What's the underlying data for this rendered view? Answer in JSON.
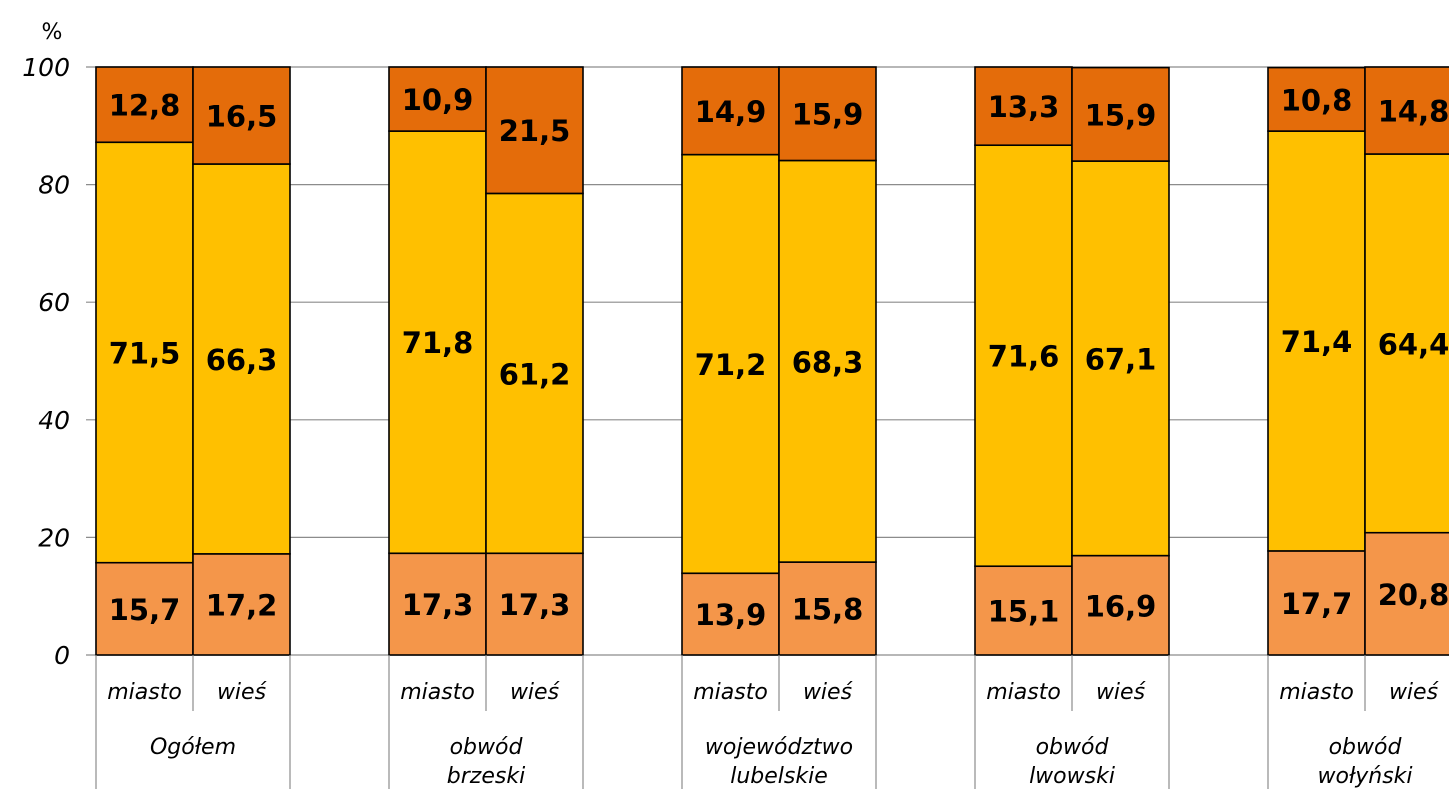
{
  "chart_data": {
    "type": "bar",
    "stacked": true,
    "y_unit": "%",
    "ylim": [
      0,
      100
    ],
    "yticks": [
      "0",
      "20",
      "40",
      "60",
      "80",
      "100"
    ],
    "grid": true,
    "colors": [
      "#F4964A",
      "#FFC000",
      "#E46C0A"
    ],
    "groups": [
      {
        "label_lines": [
          "Ogółem"
        ],
        "bars": [
          {
            "sub": "miasto",
            "values": [
              15.7,
              71.5,
              12.8
            ],
            "labels": [
              "15,7",
              "71,5",
              "12,8"
            ]
          },
          {
            "sub": "wieś",
            "values": [
              17.2,
              66.3,
              16.5
            ],
            "labels": [
              "17,2",
              "66,3",
              "16,5"
            ]
          }
        ]
      },
      {
        "label_lines": [
          "obwód",
          "brzeski"
        ],
        "bars": [
          {
            "sub": "miasto",
            "values": [
              17.3,
              71.8,
              10.9
            ],
            "labels": [
              "17,3",
              "71,8",
              "10,9"
            ]
          },
          {
            "sub": "wieś",
            "values": [
              17.3,
              61.2,
              21.5
            ],
            "labels": [
              "17,3",
              "61,2",
              "21,5"
            ]
          }
        ]
      },
      {
        "label_lines": [
          "województwo",
          "lubelskie"
        ],
        "bars": [
          {
            "sub": "miasto",
            "values": [
              13.9,
              71.2,
              14.9
            ],
            "labels": [
              "13,9",
              "71,2",
              "14,9"
            ]
          },
          {
            "sub": "wieś",
            "values": [
              15.8,
              68.3,
              15.9
            ],
            "labels": [
              "15,8",
              "68,3",
              "15,9"
            ]
          }
        ]
      },
      {
        "label_lines": [
          "obwód",
          "lwowski"
        ],
        "bars": [
          {
            "sub": "miasto",
            "values": [
              15.1,
              71.6,
              13.3
            ],
            "labels": [
              "15,1",
              "71,6",
              "13,3"
            ]
          },
          {
            "sub": "wieś",
            "values": [
              16.9,
              67.1,
              15.9
            ],
            "labels": [
              "16,9",
              "67,1",
              "15,9"
            ]
          }
        ]
      },
      {
        "label_lines": [
          "obwód",
          "wołyński"
        ],
        "bars": [
          {
            "sub": "miasto",
            "values": [
              17.7,
              71.4,
              10.8
            ],
            "labels": [
              "17,7",
              "71,4",
              "10,8"
            ]
          },
          {
            "sub": "wieś",
            "values": [
              20.8,
              64.4,
              14.8
            ],
            "labels": [
              "20,8",
              "64,4",
              "14,8"
            ]
          }
        ]
      }
    ]
  }
}
